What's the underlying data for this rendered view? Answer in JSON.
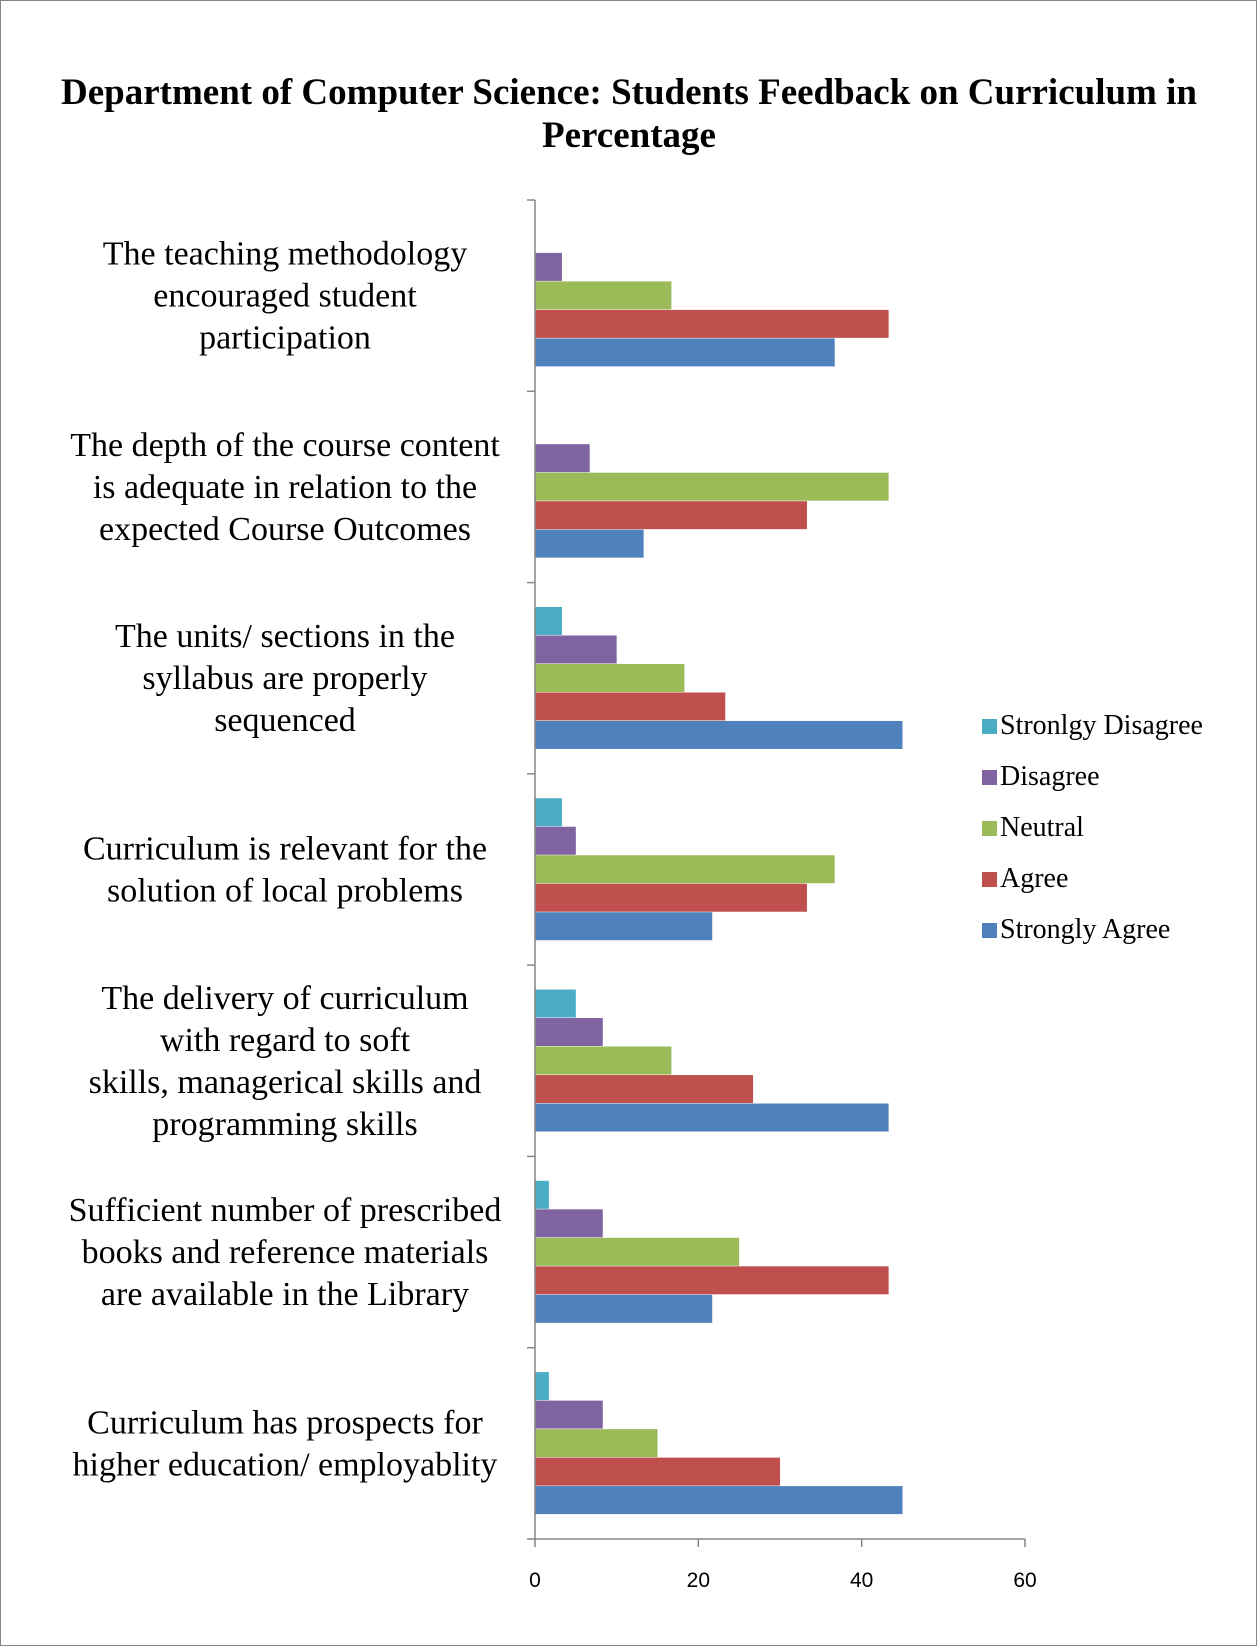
{
  "chart_data": {
    "type": "bar",
    "orientation": "horizontal",
    "title_lines": [
      "Department of Computer Science: Students Feedback on Curriculum in",
      "Percentage"
    ],
    "categories": [
      [
        "The teaching methodology",
        "encouraged student",
        "participation"
      ],
      [
        "The depth of the course content",
        "is adequate in relation to the",
        "expected Course Outcomes"
      ],
      [
        "The units/ sections in the",
        "syllabus are properly",
        "sequenced"
      ],
      [
        "Curriculum is relevant for the",
        "solution of local problems"
      ],
      [
        "The delivery of curriculum",
        "with regard to soft",
        "skills, managerical skills and",
        "programming skills"
      ],
      [
        "Sufficient number of prescribed",
        "books and reference materials",
        "are available in the Library"
      ],
      [
        "Curriculum has prospects for",
        "higher education/ employablity"
      ]
    ],
    "series": [
      {
        "name": "Stronlgy Disagree",
        "color": "#4BACC6",
        "values": [
          0,
          0,
          3.3,
          3.3,
          5,
          1.7,
          1.7
        ]
      },
      {
        "name": "Disagree",
        "color": "#8064A2",
        "values": [
          3.3,
          6.7,
          10,
          5,
          8.3,
          8.3,
          8.3
        ]
      },
      {
        "name": "Neutral",
        "color": "#9BBB59",
        "values": [
          16.7,
          43.3,
          18.3,
          36.7,
          16.7,
          25,
          15
        ]
      },
      {
        "name": "Agree",
        "color": "#C0504D",
        "values": [
          43.3,
          33.3,
          23.3,
          33.3,
          26.7,
          43.3,
          30
        ]
      },
      {
        "name": "Strongly Agree",
        "color": "#4F81BD",
        "values": [
          36.7,
          13.3,
          45,
          21.7,
          43.3,
          21.7,
          45
        ]
      }
    ],
    "legend_order": [
      "Stronlgy Disagree",
      "Disagree",
      "Neutral",
      "Agree",
      "Strongly Agree"
    ],
    "legend_position": "right",
    "xlim": [
      0,
      60
    ],
    "xticks": [
      0,
      20,
      40,
      60
    ],
    "grid": false,
    "border_color": "#868686"
  }
}
